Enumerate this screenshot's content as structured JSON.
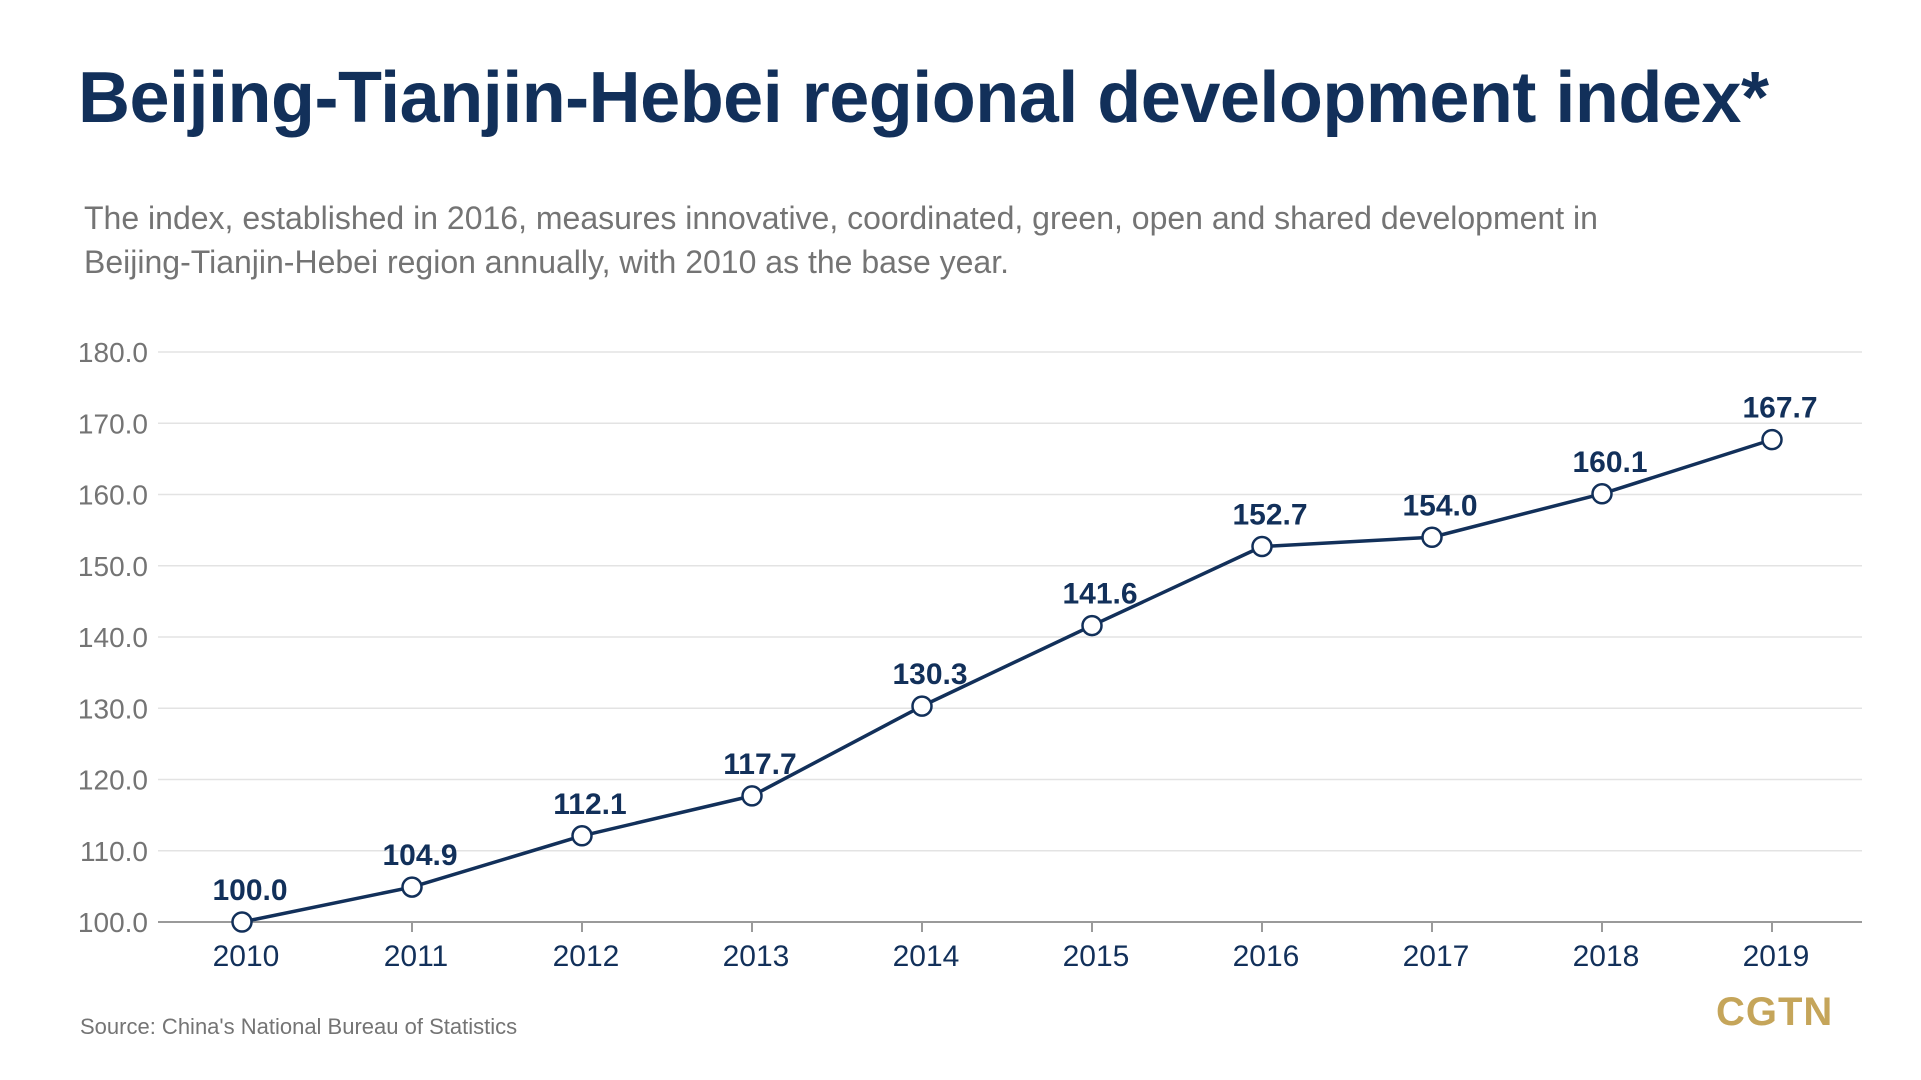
{
  "header": {
    "title": "Beijing-Tianjin-Hebei regional development index*",
    "subtitle": "The index, established in 2016, measures innovative, coordinated, green, open and shared development in Beijing-Tianjin-Hebei region annually, with 2010 as the base year."
  },
  "footer": {
    "source": "Source: China's National Bureau of Statistics",
    "brand": "CGTN"
  },
  "colors": {
    "primary": "#12305a",
    "text_gray": "#747474",
    "grid": "#e3e3e3",
    "brand_gold": "#c5a55a"
  },
  "chart_data": {
    "type": "line",
    "categories": [
      "2010",
      "2011",
      "2012",
      "2013",
      "2014",
      "2015",
      "2016",
      "2017",
      "2018",
      "2019"
    ],
    "values": [
      100.0,
      104.9,
      112.1,
      117.7,
      130.3,
      141.6,
      152.7,
      154.0,
      160.1,
      167.7
    ],
    "value_labels": [
      "100.0",
      "104.9",
      "112.1",
      "117.7",
      "130.3",
      "141.6",
      "152.7",
      "154.0",
      "160.1",
      "167.7"
    ],
    "y_ticks": [
      "100.0",
      "110.0",
      "120.0",
      "130.0",
      "140.0",
      "150.0",
      "160.0",
      "170.0",
      "180.0"
    ],
    "ylim": [
      100,
      180
    ],
    "grid": true,
    "marker": "hollow-circle"
  }
}
